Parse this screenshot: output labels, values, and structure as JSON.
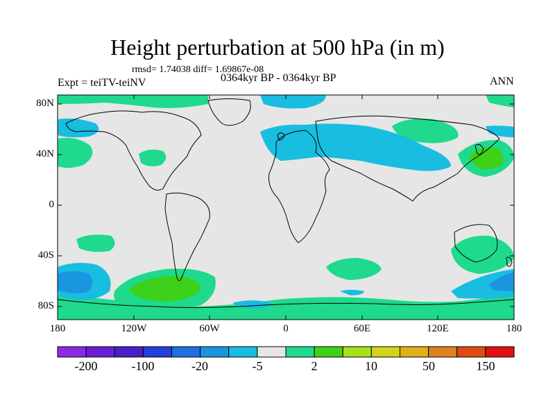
{
  "title": "Height perturbation at 500 hPa (in m)",
  "stats": "rmsd= 1.74038 diff= 1.69867e-08",
  "left_label": "Expt = teiTV-teiNV",
  "center_label": "0364kyr BP - 0364kyr BP",
  "right_label": "ANN",
  "lat_labels": [
    "80N",
    "40N",
    "0",
    "40S",
    "80S"
  ],
  "lon_labels": [
    "180",
    "120W",
    "60W",
    "0",
    "60E",
    "120E",
    "180"
  ],
  "colorbar": {
    "colors": [
      "#8a2be2",
      "#6a1fd6",
      "#4b1fc8",
      "#2440d8",
      "#1e6fe0",
      "#1a96e0",
      "#18bde0",
      "#e6e6e6",
      "#1fd98c",
      "#3ed11a",
      "#a8e01c",
      "#d4d21a",
      "#e0b01a",
      "#e08020",
      "#e04a10",
      "#e01010"
    ],
    "labels": [
      "-200",
      "-100",
      "-20",
      "-5",
      "2",
      "10",
      "50",
      "150"
    ]
  },
  "colors": {
    "background": "#e6e6e6",
    "positive_weak": "#1fd98c",
    "positive_mid": "#3ed11a",
    "negative_weak": "#18bde0",
    "negative_mid": "#1a96e0"
  }
}
